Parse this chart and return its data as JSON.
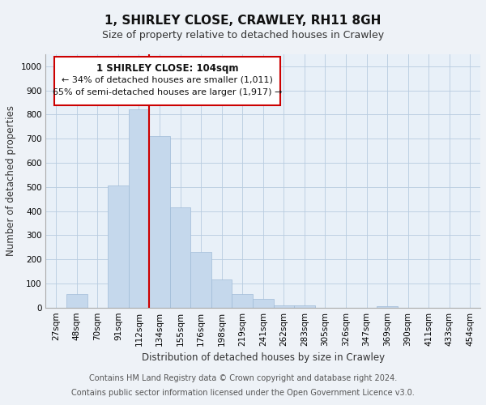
{
  "title": "1, SHIRLEY CLOSE, CRAWLEY, RH11 8GH",
  "subtitle": "Size of property relative to detached houses in Crawley",
  "xlabel": "Distribution of detached houses by size in Crawley",
  "ylabel": "Number of detached properties",
  "bar_labels": [
    "27sqm",
    "48sqm",
    "70sqm",
    "91sqm",
    "112sqm",
    "134sqm",
    "155sqm",
    "176sqm",
    "198sqm",
    "219sqm",
    "241sqm",
    "262sqm",
    "283sqm",
    "305sqm",
    "326sqm",
    "347sqm",
    "369sqm",
    "390sqm",
    "411sqm",
    "433sqm",
    "454sqm"
  ],
  "bar_values": [
    0,
    55,
    0,
    505,
    820,
    710,
    415,
    230,
    115,
    55,
    35,
    10,
    10,
    0,
    0,
    0,
    5,
    0,
    0,
    0,
    0
  ],
  "bar_color": "#c5d8ec",
  "bar_edge_color": "#a0bcd8",
  "vline_color": "#cc0000",
  "annotation_line1": "1 SHIRLEY CLOSE: 104sqm",
  "annotation_line2": "← 34% of detached houses are smaller (1,011)",
  "annotation_line3": "65% of semi-detached houses are larger (1,917) →",
  "ylim": [
    0,
    1050
  ],
  "yticks": [
    0,
    100,
    200,
    300,
    400,
    500,
    600,
    700,
    800,
    900,
    1000
  ],
  "footer_line1": "Contains HM Land Registry data © Crown copyright and database right 2024.",
  "footer_line2": "Contains public sector information licensed under the Open Government Licence v3.0.",
  "bg_color": "#eef2f7",
  "plot_bg_color": "#e8f0f8",
  "title_fontsize": 11,
  "subtitle_fontsize": 9,
  "axis_label_fontsize": 8.5,
  "tick_fontsize": 7.5,
  "footer_fontsize": 7
}
